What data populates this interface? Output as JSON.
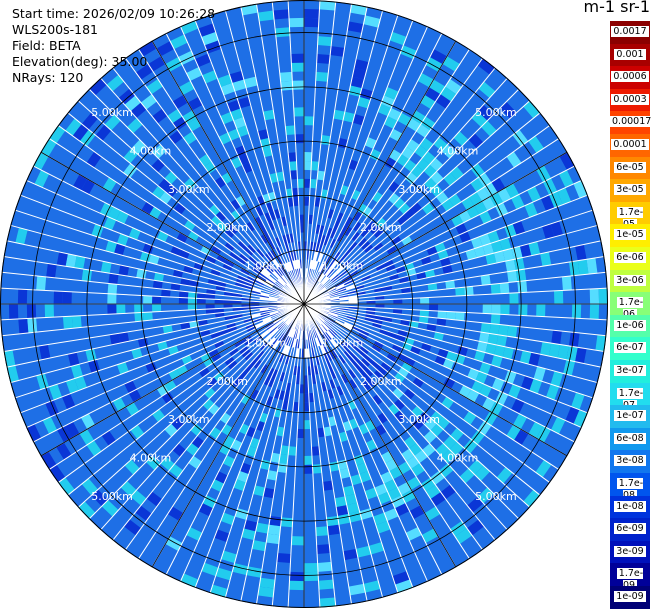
{
  "info": {
    "start_time": "Start time: 2026/02/09 10:26:28",
    "instrument": "WLS200s-181",
    "field": "Field: BETA",
    "elevation": "Elevation(deg): 35.00",
    "nrays": "NRays: 120"
  },
  "colorbar": {
    "title": "m-1 sr-1",
    "labels": [
      "0.0017",
      "0.001",
      "0.0006",
      "0.0003",
      "0.00017",
      "0.0001",
      "6e-05",
      "3e-05",
      "1.7e-05",
      "1e-05",
      "6e-06",
      "3e-06",
      "1.7e-06",
      "1e-06",
      "6e-07",
      "3e-07",
      "1.7e-07",
      "1e-07",
      "6e-08",
      "3e-08",
      "1.7e-08",
      "1e-08",
      "6e-09",
      "3e-09",
      "1.7e-09",
      "1e-09"
    ],
    "colors": [
      "#8b0000",
      "#a80000",
      "#cc0000",
      "#ee1a00",
      "#ff4400",
      "#ff6600",
      "#ff8800",
      "#ffa800",
      "#ffcc00",
      "#ffee00",
      "#eaff1a",
      "#bfff40",
      "#88ff77",
      "#55ffaa",
      "#33ffcc",
      "#22eedd",
      "#22ddee",
      "#22bbee",
      "#1199ee",
      "#1177ee",
      "#0055ee",
      "#0033dd",
      "#0022cc",
      "#0011bb",
      "#000099",
      "#000077"
    ]
  },
  "chart_data": {
    "type": "heatmap",
    "projection": "polar (PPI scan)",
    "nrays": 120,
    "range_rings_km": [
      1,
      2,
      3,
      4,
      5
    ],
    "ring_labels": [
      "1.00km",
      "2.00km",
      "3.00km",
      "4.00km",
      "5.00km"
    ],
    "max_range_km": 5.6,
    "dominant_value": "3e-08 to 1e-07",
    "colors": {
      "background_blue": "#1e6fe6",
      "cyan": "#22ccee",
      "light_cyan": "#55ddff",
      "dark_blue": "#0a36d6",
      "grid": "#000000",
      "ray_separator": "#ffffff"
    }
  }
}
